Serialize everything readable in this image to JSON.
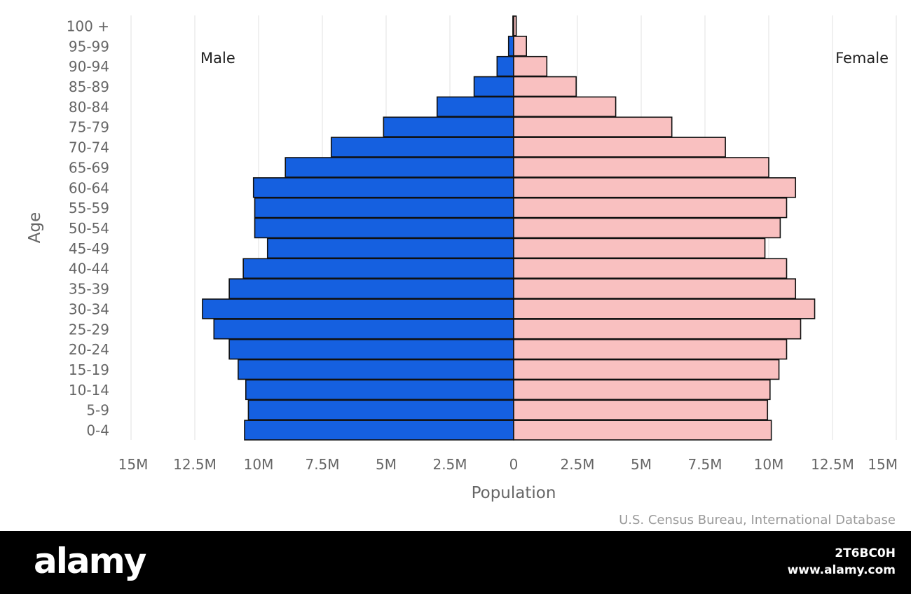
{
  "chart_data": {
    "type": "bar",
    "orientation": "horizontal",
    "xlabel": "Population",
    "ylabel": "Age",
    "source": "U.S. Census Bureau, International Database",
    "categories": [
      "0-4",
      "5-9",
      "10-14",
      "15-19",
      "20-24",
      "25-29",
      "30-34",
      "35-39",
      "40-44",
      "45-49",
      "50-54",
      "55-59",
      "60-64",
      "65-69",
      "70-74",
      "75-79",
      "80-84",
      "85-89",
      "90-94",
      "95-99",
      "100 +"
    ],
    "xlim": [
      -15000000,
      15000000
    ],
    "x_ticks": [
      {
        "value": -15000000,
        "label": "15M"
      },
      {
        "value": -12500000,
        "label": "12.5M"
      },
      {
        "value": -10000000,
        "label": "10M"
      },
      {
        "value": -7500000,
        "label": "7.5M"
      },
      {
        "value": -5000000,
        "label": "5M"
      },
      {
        "value": -2500000,
        "label": "2.5M"
      },
      {
        "value": 0,
        "label": "0"
      },
      {
        "value": 2500000,
        "label": "2.5M"
      },
      {
        "value": 5000000,
        "label": "5M"
      },
      {
        "value": 7500000,
        "label": "7.5M"
      },
      {
        "value": 10000000,
        "label": "10M"
      },
      {
        "value": 12500000,
        "label": "12.5M"
      },
      {
        "value": 15000000,
        "label": "15M"
      }
    ],
    "grid": true,
    "series": [
      {
        "name": "Male",
        "side": "left",
        "color": "#1560e0",
        "values": [
          10550000,
          10400000,
          10500000,
          10800000,
          11150000,
          11750000,
          12200000,
          11150000,
          10600000,
          9650000,
          10150000,
          10150000,
          10200000,
          8950000,
          7150000,
          5100000,
          3000000,
          1550000,
          650000,
          200000,
          30000
        ]
      },
      {
        "name": "Female",
        "side": "right",
        "color": "#f9c0c0",
        "values": [
          10100000,
          9950000,
          10050000,
          10400000,
          10700000,
          11250000,
          11800000,
          11050000,
          10700000,
          9850000,
          10450000,
          10700000,
          11050000,
          10000000,
          8300000,
          6200000,
          4000000,
          2450000,
          1300000,
          500000,
          100000
        ]
      }
    ]
  },
  "watermark": {
    "brand": "alamy",
    "image_id": "2T6BC0H",
    "url": "www.alamy.com"
  }
}
